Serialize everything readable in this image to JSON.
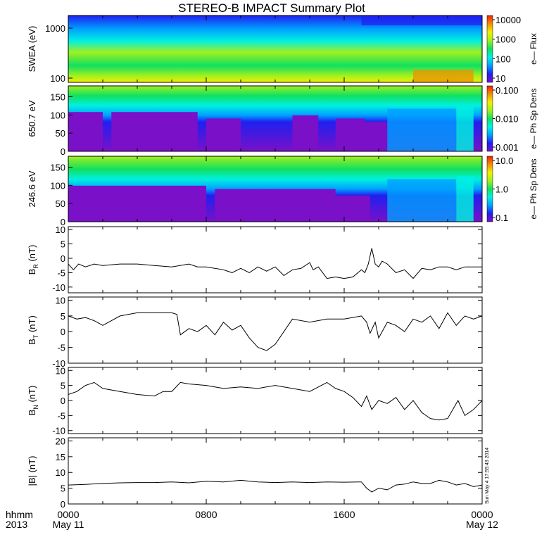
{
  "title": "STEREO-B IMPACT Summary Plot",
  "timestamp": "Sun May  4 17:55:43 2014",
  "footer": {
    "left_top": "hhmm",
    "left_bottom": "2013",
    "ticks": [
      {
        "hhmm": "0000",
        "date": "May 11"
      },
      {
        "hhmm": "0800",
        "date": ""
      },
      {
        "hhmm": "1600",
        "date": ""
      },
      {
        "hhmm": "0000",
        "date": "May 12"
      }
    ]
  },
  "colors": {
    "colormap": [
      "#7a10c8",
      "#2020f0",
      "#00a0ff",
      "#00f0e0",
      "#10e060",
      "#a0f020",
      "#f0f000",
      "#f09000",
      "#f02000"
    ],
    "line": "#000000",
    "axes": "#000000"
  },
  "chart_data": [
    {
      "type": "heatmap",
      "ylabel": "SWEA (eV)",
      "ylog": true,
      "yticks": [
        "100",
        "1000"
      ],
      "colorbar": {
        "label": "e— Flux",
        "ticks": [
          "10",
          "100",
          "1000",
          "10000"
        ],
        "log": true
      },
      "x_hours": [
        0,
        24
      ]
    },
    {
      "type": "heatmap",
      "ylabel": "650.7 eV",
      "ylim": [
        0,
        180
      ],
      "yticks": [
        "0",
        "50",
        "100",
        "150"
      ],
      "colorbar": {
        "label": "e— Ph Sp Dens",
        "ticks": [
          "0.001",
          "0.010",
          "0.100"
        ],
        "log": true
      },
      "x_hours": [
        0,
        24
      ]
    },
    {
      "type": "heatmap",
      "ylabel": "246.6 eV",
      "ylim": [
        0,
        180
      ],
      "yticks": [
        "0",
        "50",
        "100",
        "150"
      ],
      "colorbar": {
        "label": "e— Ph Sp Dens",
        "ticks": [
          "0.1",
          "1.0",
          "10.0"
        ],
        "log": true
      },
      "x_hours": [
        0,
        24
      ]
    },
    {
      "type": "line",
      "ylabel": "B",
      "ysub": "R",
      "yunit": " (nT)",
      "ylim": [
        -12,
        11
      ],
      "yticks": [
        "-10",
        "-5",
        "0",
        "5",
        "10"
      ],
      "x": [
        0,
        0.3,
        0.6,
        1,
        1.5,
        2,
        3,
        4,
        5,
        6,
        7,
        7.5,
        8,
        9,
        9.5,
        10,
        10.5,
        11,
        11.5,
        12,
        12.5,
        13,
        13.5,
        14,
        14.2,
        14.5,
        15,
        15.5,
        16,
        16.5,
        17,
        17.2,
        17.4,
        17.6,
        17.8,
        18,
        18.2,
        18.5,
        19,
        19.5,
        20,
        20.5,
        21,
        21.5,
        22,
        22.5,
        23,
        23.5,
        24
      ],
      "y": [
        -2,
        -4,
        -2,
        -3,
        -2,
        -2.5,
        -2,
        -2,
        -2.5,
        -3,
        -2,
        -3,
        -3,
        -4,
        -5,
        -3.5,
        -5,
        -3,
        -4.5,
        -3,
        -6,
        -4,
        -3.5,
        -1.5,
        -4,
        -3,
        -7,
        -6.5,
        -7,
        -6.5,
        -4,
        -5,
        -2,
        3.5,
        -2,
        -3,
        -1,
        -2,
        -5,
        -4,
        -7,
        -3.5,
        -4,
        -3,
        -3,
        -4,
        -3,
        -3,
        -3
      ]
    },
    {
      "type": "line",
      "ylabel": "B",
      "ysub": "T",
      "yunit": " (nT)",
      "ylim": [
        -10,
        11
      ],
      "yticks": [
        "-10",
        "-5",
        "0",
        "5",
        "10"
      ],
      "x": [
        0,
        0.5,
        1,
        1.5,
        2,
        3,
        4,
        5,
        6,
        6.3,
        6.5,
        7,
        7.5,
        8,
        8.5,
        9,
        9.5,
        10,
        10.5,
        11,
        11.5,
        12,
        12.5,
        13,
        14,
        15,
        16,
        17,
        17.3,
        17.5,
        17.8,
        18,
        18.5,
        19,
        19.5,
        20,
        20.5,
        21,
        21.5,
        22,
        22.5,
        23,
        23.5,
        24
      ],
      "y": [
        5,
        4,
        4.5,
        3.5,
        2,
        5,
        6,
        6,
        6,
        5.5,
        -1,
        1,
        0,
        2,
        -1,
        3,
        0.5,
        2,
        -2,
        -5,
        -6,
        -4,
        0,
        4,
        3,
        4,
        4,
        5,
        3,
        -0.5,
        3,
        -2,
        3,
        2,
        0,
        4,
        3,
        5,
        1,
        6,
        2,
        5,
        4,
        5
      ]
    },
    {
      "type": "line",
      "ylabel": "B",
      "ysub": "N",
      "yunit": " (nT)",
      "ylim": [
        -11,
        11
      ],
      "yticks": [
        "-10",
        "-5",
        "0",
        "5",
        "10"
      ],
      "x": [
        0,
        0.5,
        1,
        1.5,
        2,
        3,
        4,
        5,
        5.5,
        6,
        6.5,
        7,
        8,
        9,
        10,
        11,
        12,
        13,
        14,
        15,
        15.5,
        16,
        16.5,
        17,
        17.3,
        17.6,
        18,
        18.5,
        19,
        19.5,
        20,
        20.5,
        21,
        21.5,
        22,
        22.3,
        22.6,
        23,
        23.5,
        24
      ],
      "y": [
        2,
        3,
        5,
        6,
        4,
        3,
        2,
        1.5,
        3,
        3,
        6,
        5.5,
        5,
        4,
        4.5,
        4,
        5,
        4,
        3,
        6,
        4,
        3,
        1,
        -2,
        1.5,
        -3,
        0,
        -1,
        1,
        -3,
        0,
        -4,
        -6,
        -6.5,
        -6,
        -3,
        0,
        -5,
        -3,
        0
      ]
    },
    {
      "type": "line",
      "ylabel": "|B| (nT)",
      "ylim": [
        0,
        21
      ],
      "yticks": [
        "0",
        "5",
        "10",
        "15",
        "20"
      ],
      "x": [
        0,
        1,
        2,
        3,
        4,
        5,
        6,
        7,
        8,
        9,
        10,
        11,
        12,
        13,
        14,
        15,
        16,
        17,
        17.3,
        17.6,
        18,
        18.5,
        19,
        19.5,
        20,
        20.5,
        21,
        21.5,
        22,
        22.5,
        23,
        23.5,
        24
      ],
      "y": [
        6,
        6.2,
        6.5,
        6.7,
        6.8,
        6.8,
        7,
        6.7,
        7.2,
        7,
        7.5,
        7,
        6.8,
        7,
        6.8,
        7,
        6.9,
        7,
        5,
        3.8,
        5,
        4.5,
        6,
        6.3,
        7,
        6.5,
        6.5,
        7.5,
        7,
        6,
        6.5,
        5.5,
        6
      ]
    }
  ]
}
